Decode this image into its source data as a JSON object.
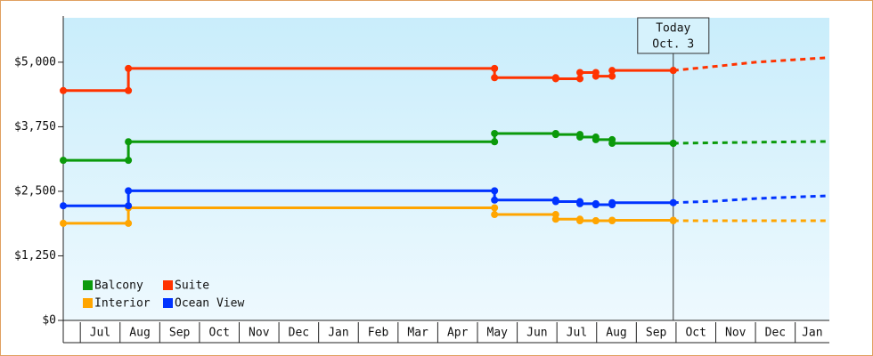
{
  "chart_data": {
    "type": "step-line",
    "categories": [
      "Jul",
      "Aug",
      "Sep",
      "Oct",
      "Nov",
      "Dec",
      "Jan",
      "Feb",
      "Mar",
      "Apr",
      "May",
      "Jun",
      "Jul",
      "Aug",
      "Sep",
      "Oct",
      "Nov",
      "Dec",
      "Jan"
    ],
    "xlim": [
      -0.43,
      18.86
    ],
    "ylim": [
      0,
      5860
    ],
    "yticks": [
      {
        "value": 0,
        "label": "$0"
      },
      {
        "value": 1250,
        "label": "$1,250"
      },
      {
        "value": 2500,
        "label": "$2,500"
      },
      {
        "value": 3750,
        "label": "$3,750"
      },
      {
        "value": 5000,
        "label": "$5,000"
      }
    ],
    "series": [
      {
        "name": "Balcony",
        "color": "#0b9a0b",
        "x": [
          -0.43,
          1.21,
          10.43,
          11.97,
          12.58,
          12.98,
          13.39,
          14.93
        ],
        "values": [
          3100,
          3460,
          3620,
          3600,
          3550,
          3500,
          3430,
          3430
        ],
        "forecast_x": [
          14.93,
          16.0,
          17.0,
          18.86
        ],
        "forecast_values": [
          3430,
          3440,
          3450,
          3466
        ]
      },
      {
        "name": "Suite",
        "color": "#ff3300",
        "x": [
          -0.43,
          1.21,
          10.43,
          11.97,
          12.58,
          12.98,
          13.39,
          14.93
        ],
        "values": [
          4450,
          4880,
          4700,
          4680,
          4800,
          4730,
          4840,
          4840
        ],
        "forecast_x": [
          14.93,
          16.0,
          17.0,
          18.86
        ],
        "forecast_values": [
          4840,
          4920,
          5000,
          5090
        ]
      },
      {
        "name": "Interior",
        "color": "#ffa500",
        "x": [
          -0.43,
          1.21,
          10.43,
          11.97,
          12.58,
          12.98,
          13.39,
          14.93
        ],
        "values": [
          1880,
          2180,
          2050,
          1960,
          1930,
          1930,
          1940,
          1930
        ],
        "forecast_x": [
          14.93,
          16.0,
          17.0,
          18.86
        ],
        "forecast_values": [
          1930,
          1930,
          1930,
          1930
        ]
      },
      {
        "name": "Ocean View",
        "color": "#0033ff",
        "x": [
          -0.43,
          1.21,
          10.43,
          11.97,
          12.58,
          12.98,
          13.39,
          14.93
        ],
        "values": [
          2220,
          2510,
          2330,
          2300,
          2260,
          2240,
          2280,
          2280
        ],
        "forecast_x": [
          14.93,
          16.0,
          17.0,
          18.86
        ],
        "forecast_values": [
          2280,
          2310,
          2360,
          2414
        ]
      }
    ],
    "annotations": [
      {
        "x": 14.93,
        "lines": [
          "Today",
          "Oct. 3"
        ]
      }
    ]
  }
}
